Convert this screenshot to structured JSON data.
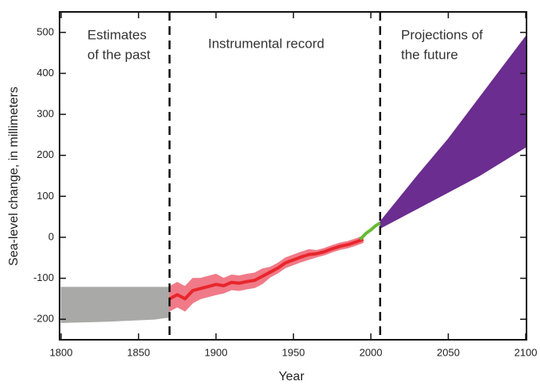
{
  "chart_data": {
    "type": "band",
    "x_label": "Year",
    "y_label": "Sea-level change, in millimeters",
    "xlim": [
      1800,
      2100
    ],
    "ylim": [
      -250,
      550
    ],
    "xticks": [
      1800,
      1850,
      1900,
      1950,
      2000,
      2050,
      2100
    ],
    "yticks": [
      -200,
      -100,
      0,
      100,
      200,
      300,
      400,
      500
    ],
    "dividers": [
      1870,
      2006
    ],
    "annotations": [
      [
        "Estimates",
        "of the past"
      ],
      [
        "Instrumental record"
      ],
      [
        "Projections of",
        "the future"
      ]
    ],
    "bands": [
      {
        "color": "#a9a9a7",
        "x": [
          1800,
          1830,
          1860,
          1870
        ],
        "lower": [
          -208,
          -205,
          -200,
          -195
        ],
        "upper": [
          -122,
          -122,
          -122,
          -122
        ]
      },
      {
        "color": "#f07a88",
        "x": [
          1870,
          1875,
          1880,
          1885,
          1890,
          1895,
          1900,
          1905,
          1910,
          1915,
          1920,
          1925,
          1930,
          1935,
          1940,
          1945,
          1950,
          1955,
          1960,
          1965,
          1970,
          1975,
          1980,
          1985,
          1990,
          1995
        ],
        "lower": [
          -180,
          -170,
          -180,
          -160,
          -150,
          -145,
          -140,
          -136,
          -128,
          -130,
          -126,
          -123,
          -113,
          -97,
          -87,
          -74,
          -67,
          -60,
          -54,
          -48,
          -43,
          -36,
          -30,
          -26,
          -20,
          -13
        ],
        "upper": [
          -120,
          -110,
          -120,
          -100,
          -100,
          -95,
          -90,
          -100,
          -92,
          -94,
          -90,
          -87,
          -77,
          -73,
          -63,
          -50,
          -43,
          -36,
          -30,
          -32,
          -27,
          -20,
          -14,
          -10,
          -4,
          3
        ]
      },
      {
        "color": "#6b2d8f",
        "x": [
          2006,
          2030,
          2050,
          2070,
          2100
        ],
        "lower": [
          22,
          70,
          110,
          150,
          220
        ],
        "upper": [
          38,
          150,
          240,
          340,
          490
        ]
      }
    ],
    "series": [
      {
        "color": "#e8262c",
        "x": [
          1870,
          1875,
          1880,
          1885,
          1890,
          1895,
          1900,
          1905,
          1910,
          1915,
          1920,
          1925,
          1930,
          1935,
          1940,
          1945,
          1950,
          1955,
          1960,
          1965,
          1970,
          1975,
          1980,
          1985,
          1990,
          1995
        ],
        "values": [
          -150,
          -140,
          -150,
          -130,
          -125,
          -120,
          -115,
          -118,
          -110,
          -112,
          -108,
          -105,
          -95,
          -85,
          -75,
          -62,
          -55,
          -48,
          -42,
          -40,
          -35,
          -28,
          -22,
          -18,
          -12,
          -5
        ]
      },
      {
        "color": "#66bb33",
        "x": [
          1993,
          1997,
          2000,
          2003,
          2006
        ],
        "values": [
          -5,
          10,
          18,
          28,
          35
        ]
      }
    ]
  }
}
